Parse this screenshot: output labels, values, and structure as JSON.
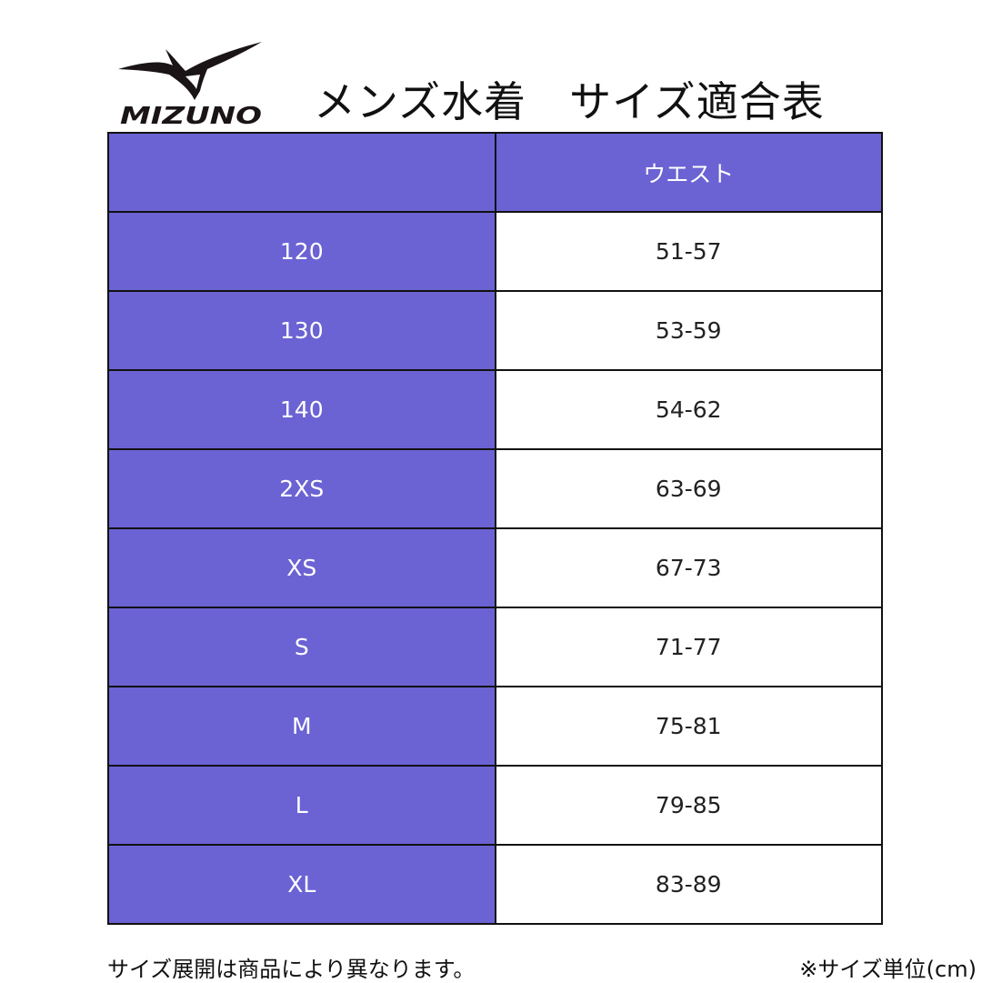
{
  "brand": {
    "logo_text": "MIZUNO"
  },
  "title": "メンズ水着　サイズ適合表",
  "table": {
    "headers": [
      "",
      "ウエスト"
    ],
    "rows": [
      {
        "size": "120",
        "waist": "51-57"
      },
      {
        "size": "130",
        "waist": "53-59"
      },
      {
        "size": "140",
        "waist": "54-62"
      },
      {
        "size": "2XS",
        "waist": "63-69"
      },
      {
        "size": "XS",
        "waist": "67-73"
      },
      {
        "size": "S",
        "waist": "71-77"
      },
      {
        "size": "M",
        "waist": "75-81"
      },
      {
        "size": "L",
        "waist": "79-85"
      },
      {
        "size": "XL",
        "waist": "83-89"
      }
    ]
  },
  "footer": {
    "note": "サイズ展開は商品により異なります。",
    "unit": "※サイズ単位(cm)"
  },
  "colors": {
    "header_fill": "#6b63d3",
    "border": "#111111"
  }
}
